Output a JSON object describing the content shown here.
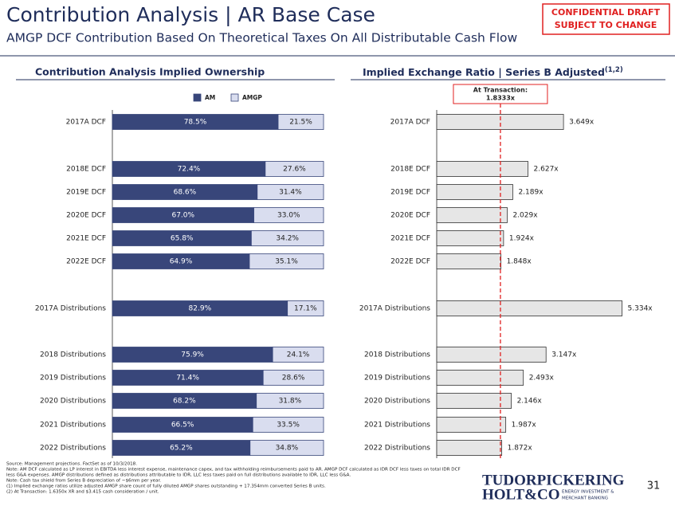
{
  "title": "Contribution Analysis | AR Base Case",
  "subtitle": "AMGP DCF Contribution Based On Theoretical Taxes On All Distributable Cash Flow",
  "confidential": [
    "CONFIDENTIAL DRAFT",
    "SUBJECT TO CHANGE"
  ],
  "footnotes": [
    "Source: Management projections. FactSet as of 10/3/2018.",
    "Note: AM DCF calculated as LP interest in EBITDA less interest expense, maintenance capex, and tax withholding reimbursements paid to AR. AMGP DCF calculated as IDR DCF less taxes on total IDR DCF",
    "less G&A expenses. AMGP distributions defined as distributions attributable to IDR, LLC less taxes paid on full distributions available to IDR, LLC less G&A.",
    "Note: Cash tax shield from Series B depreciation of ~$6mm per year.",
    "(1)      Implied exchange ratios utilize adjusted AMGP share count of fully diluted AMGP shares outstanding + 17.354mm converted Series B units.",
    "(2)      At Transaction: 1.6350x XR and $3.415 cash consideration / unit."
  ],
  "logo": {
    "line1": "TUDORPICKERING",
    "line2": "HOLT&CO",
    "tag1": "ENERGY INVESTMENT &",
    "tag2": "MERCHANT BANKING"
  },
  "page_number": "31",
  "chart_data": [
    {
      "type": "stacked_bar",
      "title": "Contribution Analysis Implied Ownership",
      "categories": [
        "2017A DCF",
        "2018E DCF",
        "2019E DCF",
        "2020E DCF",
        "2021E DCF",
        "2022E DCF",
        "2017A Distributions",
        "2018 Distributions",
        "2019 Distributions",
        "2020 Distributions",
        "2021 Distributions",
        "2022 Distributions"
      ],
      "series": [
        {
          "name": "AM",
          "color": "#38467a",
          "values": [
            78.5,
            72.4,
            68.6,
            67.0,
            65.8,
            64.9,
            82.9,
            75.9,
            71.4,
            68.2,
            66.5,
            65.2
          ],
          "value_labels": [
            "78.5%",
            "72.4%",
            "68.6%",
            "67.0%",
            "65.8%",
            "64.9%",
            "82.9%",
            "75.9%",
            "71.4%",
            "68.2%",
            "66.5%",
            "65.2%"
          ]
        },
        {
          "name": "AMGP",
          "color": "#d9ddef",
          "values": [
            21.5,
            27.6,
            31.4,
            33.0,
            34.2,
            35.1,
            17.1,
            24.1,
            28.6,
            31.8,
            33.5,
            34.8
          ],
          "value_labels": [
            "21.5%",
            "27.6%",
            "31.4%",
            "33.0%",
            "34.2%",
            "35.1%",
            "17.1%",
            "24.1%",
            "28.6%",
            "31.8%",
            "33.5%",
            "34.8%"
          ]
        }
      ],
      "xlim": [
        0,
        100
      ]
    },
    {
      "type": "bar",
      "title": "Implied Exchange Ratio | Series B Adjusted",
      "title_superscript": "(1,2)",
      "categories": [
        "2017A DCF",
        "2018E DCF",
        "2019E DCF",
        "2020E DCF",
        "2021E DCF",
        "2022E DCF",
        "2017A Distributions",
        "2018 Distributions",
        "2019 Distributions",
        "2020 Distributions",
        "2021 Distributions",
        "2022 Distributions"
      ],
      "values": [
        3.649,
        2.627,
        2.189,
        2.029,
        1.924,
        1.848,
        5.334,
        3.147,
        2.493,
        2.146,
        1.987,
        1.872
      ],
      "value_labels": [
        "3.649x",
        "2.627x",
        "2.189x",
        "2.029x",
        "1.924x",
        "1.848x",
        "5.334x",
        "3.147x",
        "2.493x",
        "2.146x",
        "1.987x",
        "1.872x"
      ],
      "color": "#e6e6e6",
      "reference_line": {
        "value": 1.8333,
        "label": "1.8333x",
        "annotation": "At Transaction:",
        "color": "#e02020"
      },
      "xlim": [
        0,
        6
      ]
    }
  ]
}
